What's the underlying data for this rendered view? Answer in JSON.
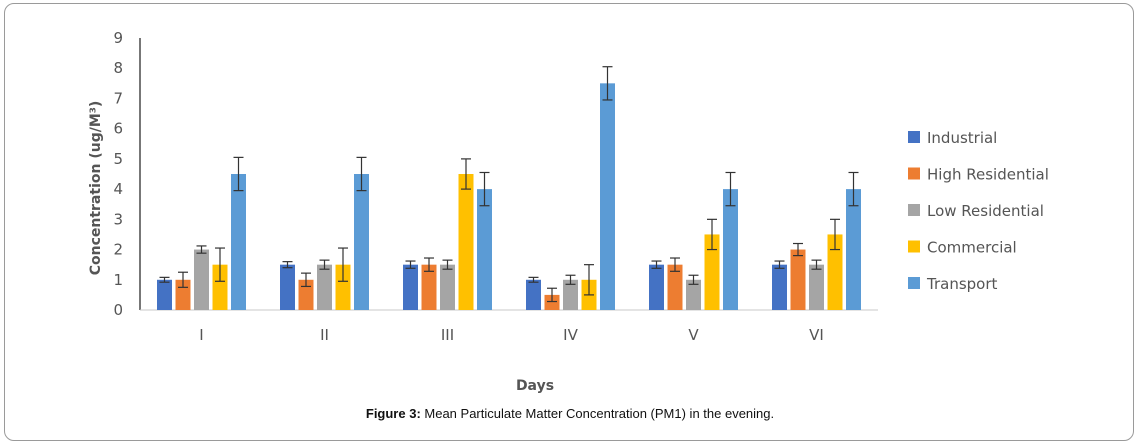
{
  "chart_data": {
    "type": "bar",
    "title": "",
    "xlabel": "Days",
    "ylabel": "Concentration (ug/M³)",
    "ylim": [
      0,
      9
    ],
    "yticks": [
      0,
      1,
      2,
      3,
      4,
      5,
      6,
      7,
      8,
      9
    ],
    "categories": [
      "I",
      "II",
      "III",
      "IV",
      "V",
      "VI"
    ],
    "legend_position": "right",
    "error_bars": true,
    "series": [
      {
        "name": "Industrial",
        "color": "#4472c4",
        "values": [
          1.0,
          1.5,
          1.5,
          1.0,
          1.5,
          1.5
        ],
        "errors": [
          0.08,
          0.1,
          0.12,
          0.08,
          0.12,
          0.12
        ]
      },
      {
        "name": "High Residential",
        "color": "#ed7d31",
        "values": [
          1.0,
          1.0,
          1.5,
          0.5,
          1.5,
          2.0
        ],
        "errors": [
          0.25,
          0.22,
          0.22,
          0.22,
          0.22,
          0.2
        ]
      },
      {
        "name": "Low Residential",
        "color": "#a5a5a5",
        "values": [
          2.0,
          1.5,
          1.5,
          1.0,
          1.0,
          1.5
        ],
        "errors": [
          0.12,
          0.15,
          0.15,
          0.15,
          0.15,
          0.15
        ]
      },
      {
        "name": "Commercial",
        "color": "#ffc000",
        "values": [
          1.5,
          1.5,
          4.5,
          1.0,
          2.5,
          2.5
        ],
        "errors": [
          0.55,
          0.55,
          0.5,
          0.5,
          0.5,
          0.5
        ]
      },
      {
        "name": "Transport",
        "color": "#5b9bd5",
        "values": [
          4.5,
          4.5,
          4.0,
          7.5,
          4.0,
          4.0
        ],
        "errors": [
          0.55,
          0.55,
          0.55,
          0.55,
          0.55,
          0.55
        ]
      }
    ]
  },
  "caption": {
    "label": "Figure 3:",
    "text": " Mean Particulate Matter Concentration (PM1) in the evening."
  }
}
